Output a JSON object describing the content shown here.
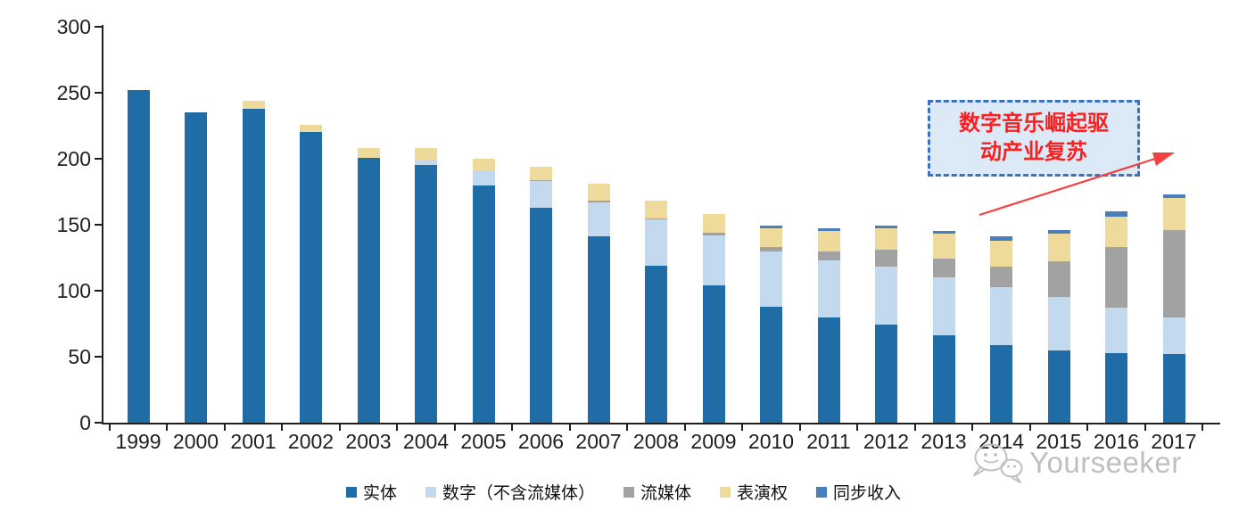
{
  "chart_data": {
    "type": "bar",
    "stacked": true,
    "title": "",
    "xlabel": "",
    "ylabel": "",
    "ylim": [
      0,
      300
    ],
    "yticks": [
      0,
      50,
      100,
      150,
      200,
      250,
      300
    ],
    "grid": false,
    "legend_position": "bottom",
    "categories": [
      "1999",
      "2000",
      "2001",
      "2002",
      "2003",
      "2004",
      "2005",
      "2006",
      "2007",
      "2008",
      "2009",
      "2010",
      "2011",
      "2012",
      "2013",
      "2014",
      "2015",
      "2016",
      "2017"
    ],
    "series": [
      {
        "key": "physical",
        "name": "实体",
        "color": "#1f6ca6",
        "values": [
          252,
          235,
          238,
          220,
          201,
          195,
          180,
          163,
          141,
          119,
          104,
          88,
          80,
          74,
          66,
          59,
          55,
          53,
          52
        ]
      },
      {
        "key": "digital-excl-streaming",
        "name": "数字（不含流媒体）",
        "color": "#c3d9ee",
        "values": [
          0,
          0,
          0,
          0,
          0,
          4,
          11,
          20,
          26,
          35,
          38,
          42,
          43,
          44,
          44,
          44,
          40,
          34,
          28
        ]
      },
      {
        "key": "streaming",
        "name": "流媒体",
        "color": "#a2a2a2",
        "values": [
          0,
          0,
          0,
          0,
          0,
          0,
          0,
          1,
          1,
          1,
          2,
          3,
          7,
          13,
          14,
          15,
          27,
          46,
          66
        ]
      },
      {
        "key": "performance-rights",
        "name": "表演权",
        "color": "#eedb9b",
        "values": [
          0,
          0,
          6,
          6,
          7,
          9,
          9,
          10,
          13,
          13,
          14,
          14,
          15,
          16,
          19,
          20,
          21,
          23,
          24
        ]
      },
      {
        "key": "sync-revenue",
        "name": "同步收入",
        "color": "#4a7ebb",
        "values": [
          0,
          0,
          0,
          0,
          0,
          0,
          0,
          0,
          0,
          0,
          0,
          2,
          2,
          2,
          2,
          3,
          3,
          4,
          3
        ]
      }
    ]
  },
  "annotation": {
    "line1": "数字音乐崛起驱",
    "line2": "动产业复苏",
    "text_color": "#fb2020",
    "fill_color": "#dce9f7",
    "border_color": "#3f6fbf",
    "arrow_color": "#f54040"
  },
  "watermark": {
    "text": "Yourseeker",
    "icon": "chat-bubbles-icon",
    "color": "#bfbfbf"
  }
}
